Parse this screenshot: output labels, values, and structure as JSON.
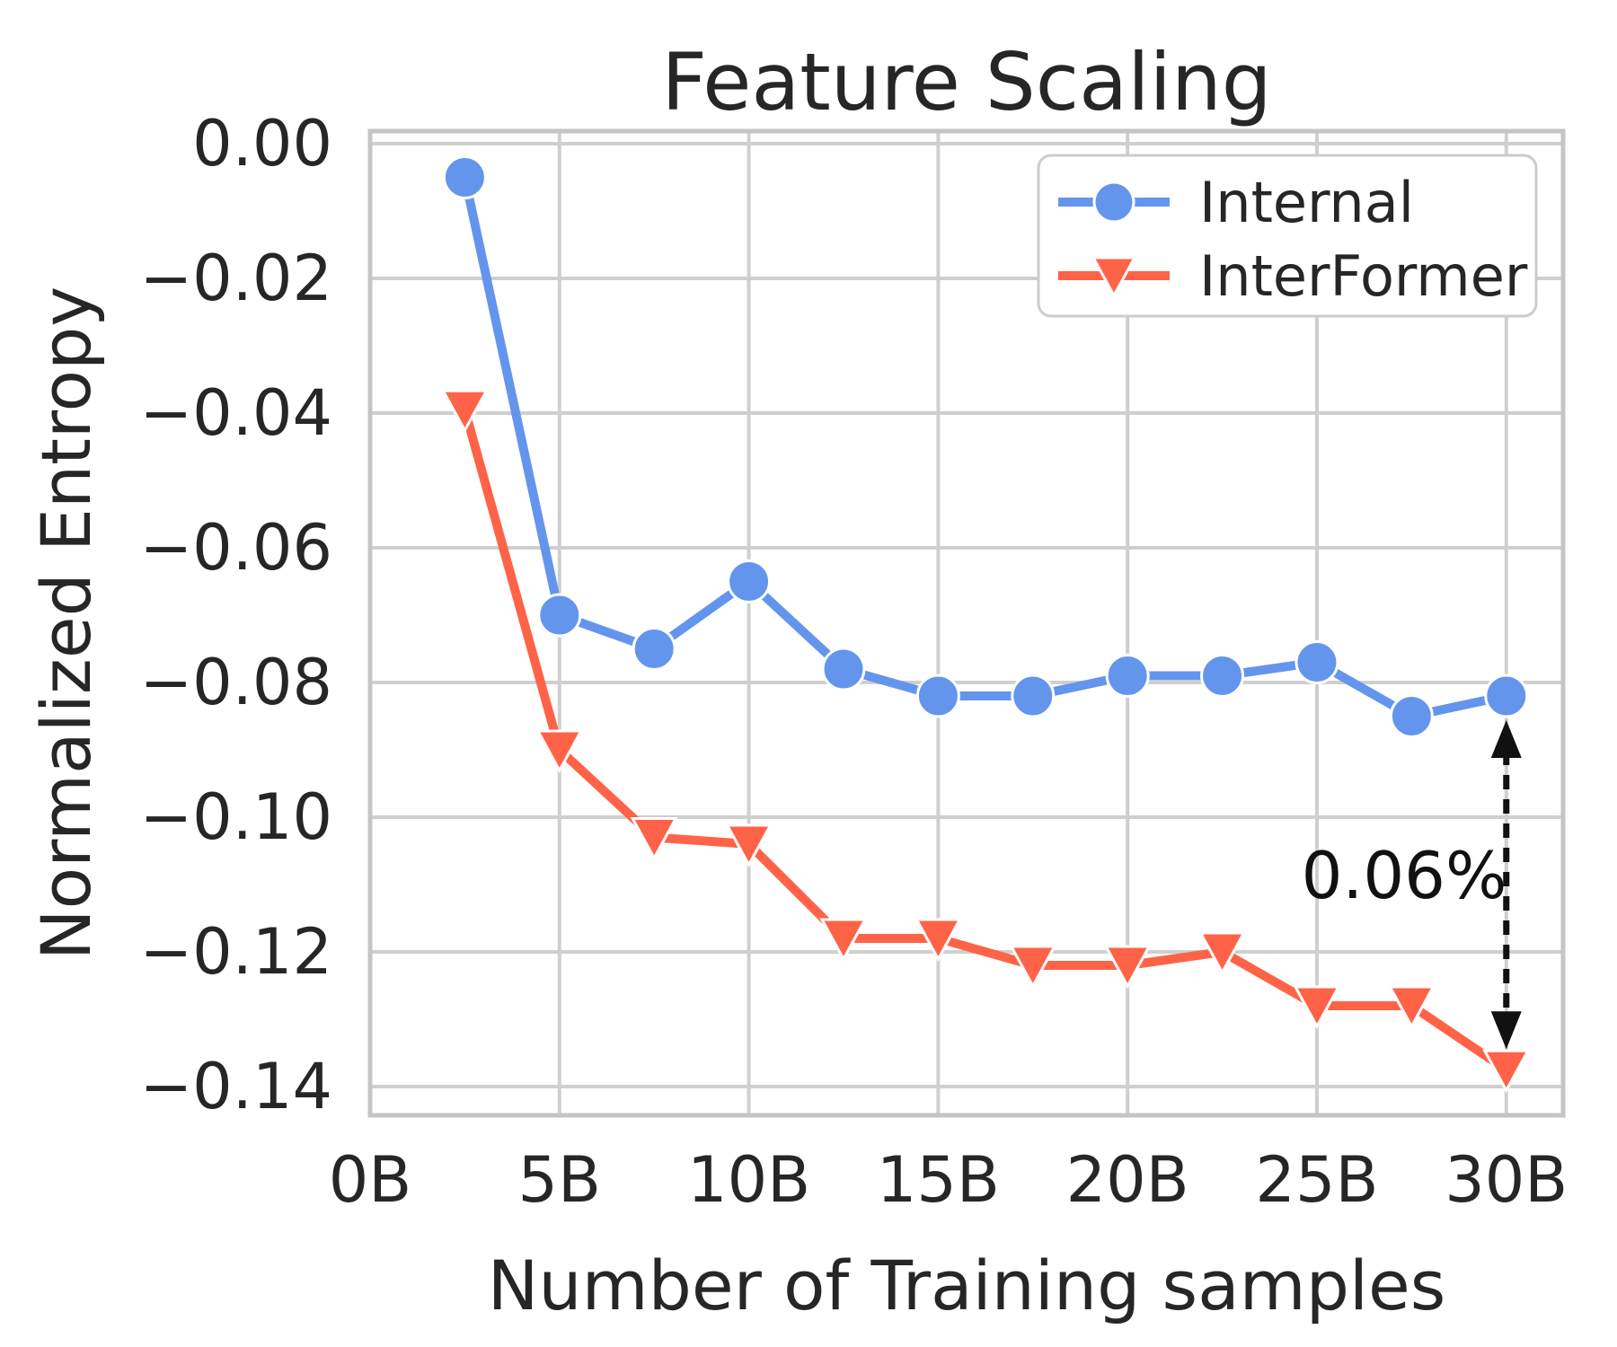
{
  "figure": {
    "background": "#ffffff"
  },
  "chart_data": {
    "type": "line",
    "title": "Feature Scaling",
    "xlabel": "Number of Training samples",
    "ylabel": "Normalized Entropy",
    "x_unit": "B",
    "x": [
      2.5,
      5,
      7.5,
      10,
      12.5,
      15,
      17.5,
      20,
      22.5,
      25,
      27.5,
      30
    ],
    "series": [
      {
        "name": "Internal",
        "color": "#6495ED",
        "marker": "circle",
        "values": [
          -0.005,
          -0.07,
          -0.075,
          -0.065,
          -0.078,
          -0.082,
          -0.082,
          -0.079,
          -0.079,
          -0.077,
          -0.085,
          -0.082
        ]
      },
      {
        "name": "InterFormer",
        "color": "#FF6347",
        "marker": "triangle-down",
        "values": [
          -0.0395,
          -0.09,
          -0.103,
          -0.104,
          -0.118,
          -0.118,
          -0.122,
          -0.122,
          -0.12,
          -0.128,
          -0.128,
          -0.1375
        ]
      }
    ],
    "xticks": {
      "values": [
        0,
        5,
        10,
        15,
        20,
        25,
        30
      ],
      "labels": [
        "0B",
        "5B",
        "10B",
        "15B",
        "20B",
        "25B",
        "30B"
      ]
    },
    "yticks": {
      "values": [
        0,
        -0.02,
        -0.04,
        -0.06,
        -0.08,
        -0.1,
        -0.12,
        -0.14
      ],
      "labels": [
        "0.00",
        "−0.02",
        "−0.04",
        "−0.06",
        "−0.08",
        "−0.10",
        "−0.12",
        "−0.14"
      ]
    },
    "xlim": [
      0,
      31.5
    ],
    "ylim": [
      -0.1443,
      0.0019
    ],
    "grid": true,
    "legend_position": "upper right",
    "annotation": {
      "label": "0.06%",
      "x_value": 30,
      "between_series": [
        "Internal",
        "InterFormer"
      ],
      "arrow_style": "dashed-double-headed"
    },
    "colors": {
      "grid": "#cfcfcf",
      "spine": "#c5c5c5",
      "text": "#262626",
      "annotation": "#111111",
      "marker_edge": "#ffffff",
      "legend_border": "#cccccc",
      "legend_fill": "#ffffff"
    }
  }
}
